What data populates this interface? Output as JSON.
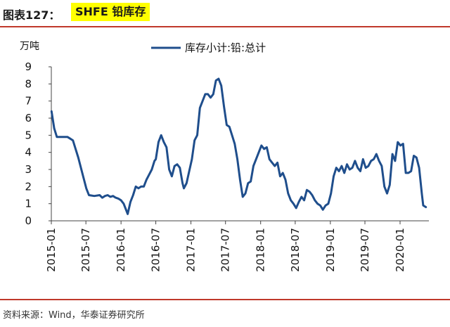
{
  "header": {
    "prefix": "图表127：",
    "title": "SHFE 铅库存"
  },
  "footer": {
    "source": "资料来源：Wind，华泰证券研究所"
  },
  "colors": {
    "series": "#1f4e8c",
    "rule": "#c0392b",
    "highlight": "#ffff00"
  },
  "chart_data": {
    "type": "line",
    "title": "SHFE 铅库存",
    "ylabel": "万吨",
    "xlabel": "",
    "ylim": [
      0,
      9
    ],
    "yticks": [
      0,
      1,
      2,
      3,
      4,
      5,
      6,
      7,
      8,
      9
    ],
    "xlim": [
      "2015-01-01",
      "2020-05-31"
    ],
    "xticks": [
      "2015-01",
      "2015-07",
      "2016-01",
      "2016-07",
      "2017-01",
      "2017-07",
      "2018-01",
      "2018-07",
      "2019-01",
      "2019-07",
      "2020-01"
    ],
    "grid": false,
    "legend": "top-center",
    "series": [
      {
        "name": "库存小计:铅:总计",
        "points": [
          [
            "2015-01-02",
            6.4
          ],
          [
            "2015-01-16",
            5.4
          ],
          [
            "2015-01-30",
            4.9
          ],
          [
            "2015-02-27",
            4.9
          ],
          [
            "2015-03-27",
            4.9
          ],
          [
            "2015-04-10",
            4.8
          ],
          [
            "2015-04-24",
            4.7
          ],
          [
            "2015-05-08",
            4.2
          ],
          [
            "2015-05-22",
            3.7
          ],
          [
            "2015-06-05",
            3.1
          ],
          [
            "2015-06-19",
            2.5
          ],
          [
            "2015-07-03",
            1.9
          ],
          [
            "2015-07-17",
            1.5
          ],
          [
            "2015-08-14",
            1.45
          ],
          [
            "2015-09-11",
            1.5
          ],
          [
            "2015-09-25",
            1.35
          ],
          [
            "2015-10-09",
            1.45
          ],
          [
            "2015-10-23",
            1.5
          ],
          [
            "2015-11-06",
            1.4
          ],
          [
            "2015-11-20",
            1.45
          ],
          [
            "2015-12-04",
            1.35
          ],
          [
            "2015-12-18",
            1.3
          ],
          [
            "2016-01-01",
            1.2
          ],
          [
            "2016-01-15",
            1.0
          ],
          [
            "2016-01-29",
            0.6
          ],
          [
            "2016-02-05",
            0.4
          ],
          [
            "2016-02-19",
            1.1
          ],
          [
            "2016-03-04",
            1.5
          ],
          [
            "2016-03-18",
            2.0
          ],
          [
            "2016-04-01",
            1.9
          ],
          [
            "2016-04-15",
            2.0
          ],
          [
            "2016-04-29",
            2.0
          ],
          [
            "2016-05-13",
            2.4
          ],
          [
            "2016-05-27",
            2.7
          ],
          [
            "2016-06-10",
            3.0
          ],
          [
            "2016-06-24",
            3.5
          ],
          [
            "2016-07-01",
            3.6
          ],
          [
            "2016-07-15",
            4.6
          ],
          [
            "2016-07-29",
            5.0
          ],
          [
            "2016-08-12",
            4.6
          ],
          [
            "2016-08-26",
            4.3
          ],
          [
            "2016-09-09",
            3.0
          ],
          [
            "2016-09-23",
            2.6
          ],
          [
            "2016-10-07",
            3.2
          ],
          [
            "2016-10-21",
            3.3
          ],
          [
            "2016-11-04",
            3.1
          ],
          [
            "2016-11-18",
            2.2
          ],
          [
            "2016-11-25",
            1.9
          ],
          [
            "2016-12-09",
            2.2
          ],
          [
            "2016-12-23",
            2.9
          ],
          [
            "2017-01-06",
            3.6
          ],
          [
            "2017-01-20",
            4.7
          ],
          [
            "2017-02-03",
            5.0
          ],
          [
            "2017-02-17",
            6.6
          ],
          [
            "2017-03-03",
            7.0
          ],
          [
            "2017-03-17",
            7.4
          ],
          [
            "2017-03-31",
            7.4
          ],
          [
            "2017-04-14",
            7.2
          ],
          [
            "2017-04-28",
            7.4
          ],
          [
            "2017-05-12",
            8.2
          ],
          [
            "2017-05-26",
            8.3
          ],
          [
            "2017-06-09",
            7.9
          ],
          [
            "2017-06-23",
            6.7
          ],
          [
            "2017-07-07",
            5.6
          ],
          [
            "2017-07-21",
            5.5
          ],
          [
            "2017-08-04",
            5.0
          ],
          [
            "2017-08-18",
            4.5
          ],
          [
            "2017-09-01",
            3.6
          ],
          [
            "2017-09-15",
            2.4
          ],
          [
            "2017-09-29",
            1.4
          ],
          [
            "2017-10-13",
            1.6
          ],
          [
            "2017-10-27",
            2.2
          ],
          [
            "2017-11-10",
            2.3
          ],
          [
            "2017-11-24",
            3.2
          ],
          [
            "2017-12-08",
            3.6
          ],
          [
            "2017-12-22",
            4.0
          ],
          [
            "2018-01-05",
            4.4
          ],
          [
            "2018-01-19",
            4.2
          ],
          [
            "2018-02-02",
            4.3
          ],
          [
            "2018-02-16",
            3.6
          ],
          [
            "2018-03-02",
            3.4
          ],
          [
            "2018-03-16",
            3.2
          ],
          [
            "2018-03-30",
            3.4
          ],
          [
            "2018-04-13",
            2.6
          ],
          [
            "2018-04-27",
            2.8
          ],
          [
            "2018-05-11",
            2.4
          ],
          [
            "2018-05-25",
            1.6
          ],
          [
            "2018-06-08",
            1.2
          ],
          [
            "2018-06-22",
            1.0
          ],
          [
            "2018-07-06",
            0.75
          ],
          [
            "2018-07-20",
            1.1
          ],
          [
            "2018-08-03",
            1.4
          ],
          [
            "2018-08-17",
            1.2
          ],
          [
            "2018-08-31",
            1.8
          ],
          [
            "2018-09-14",
            1.7
          ],
          [
            "2018-09-28",
            1.5
          ],
          [
            "2018-10-12",
            1.2
          ],
          [
            "2018-10-26",
            1.0
          ],
          [
            "2018-11-09",
            0.9
          ],
          [
            "2018-11-23",
            0.65
          ],
          [
            "2018-12-07",
            0.9
          ],
          [
            "2018-12-21",
            1.0
          ],
          [
            "2019-01-04",
            1.6
          ],
          [
            "2019-01-18",
            2.6
          ],
          [
            "2019-02-01",
            3.1
          ],
          [
            "2019-02-15",
            2.9
          ],
          [
            "2019-03-01",
            3.2
          ],
          [
            "2019-03-15",
            2.8
          ],
          [
            "2019-03-29",
            3.3
          ],
          [
            "2019-04-12",
            3.0
          ],
          [
            "2019-04-26",
            3.1
          ],
          [
            "2019-05-10",
            3.5
          ],
          [
            "2019-05-24",
            3.1
          ],
          [
            "2019-06-07",
            2.9
          ],
          [
            "2019-06-21",
            3.6
          ],
          [
            "2019-07-05",
            3.1
          ],
          [
            "2019-07-19",
            3.2
          ],
          [
            "2019-08-02",
            3.5
          ],
          [
            "2019-08-16",
            3.6
          ],
          [
            "2019-08-30",
            3.9
          ],
          [
            "2019-09-13",
            3.5
          ],
          [
            "2019-09-27",
            3.2
          ],
          [
            "2019-10-11",
            2.0
          ],
          [
            "2019-10-25",
            1.6
          ],
          [
            "2019-11-08",
            2.1
          ],
          [
            "2019-11-22",
            3.9
          ],
          [
            "2019-12-06",
            3.5
          ],
          [
            "2019-12-20",
            4.6
          ],
          [
            "2020-01-03",
            4.4
          ],
          [
            "2020-01-17",
            4.5
          ],
          [
            "2020-01-31",
            2.8
          ],
          [
            "2020-02-14",
            2.8
          ],
          [
            "2020-02-28",
            2.9
          ],
          [
            "2020-03-13",
            3.8
          ],
          [
            "2020-03-27",
            3.7
          ],
          [
            "2020-04-10",
            3.1
          ],
          [
            "2020-04-24",
            1.6
          ],
          [
            "2020-05-01",
            0.9
          ],
          [
            "2020-05-15",
            0.8
          ]
        ]
      }
    ]
  }
}
